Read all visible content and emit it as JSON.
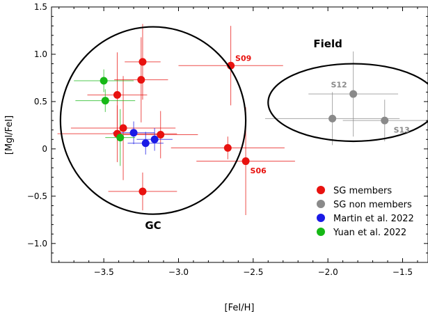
{
  "chart_data": {
    "type": "scatter",
    "xlabel": "[FeI/H]",
    "ylabel": "[MgI/FeI]",
    "xlim": [
      -3.85,
      -1.33
    ],
    "ylim": [
      -1.2,
      1.5
    ],
    "x_ticks": [
      -3.5,
      -3.0,
      -2.5,
      -2.0,
      -1.5
    ],
    "x_tick_labels": [
      "−3.5",
      "−3.0",
      "−2.5",
      "−2.0",
      "−1.5"
    ],
    "y_ticks": [
      -1.0,
      -0.5,
      0.0,
      0.5,
      1.0,
      1.5
    ],
    "y_tick_labels": [
      "−1.0",
      "−0.5",
      "0",
      "0.5",
      "1.0",
      "1.5"
    ],
    "grid": false,
    "legend_position": "lower-right",
    "series": [
      {
        "name": "SG members",
        "color": "#e8120f",
        "points": [
          {
            "x": -3.24,
            "y": 0.92,
            "xerr": 0.12,
            "yerr": 0.4
          },
          {
            "x": -3.25,
            "y": 0.73,
            "xerr": 0.18,
            "yerr": 0.45
          },
          {
            "x": -3.41,
            "y": 0.57,
            "xerr": 0.2,
            "yerr": 0.45
          },
          {
            "x": -3.37,
            "y": 0.22,
            "xerr": 0.35,
            "yerr": 0.55
          },
          {
            "x": -3.12,
            "y": 0.15,
            "xerr": 0.25,
            "yerr": 0.25
          },
          {
            "x": -3.41,
            "y": 0.16,
            "xerr": 0.4,
            "yerr": 0.3
          },
          {
            "x": -2.65,
            "y": 0.88,
            "xerr": 0.35,
            "yerr": 0.42
          },
          {
            "x": -2.67,
            "y": 0.01,
            "xerr": 0.38,
            "yerr": 0.12
          },
          {
            "x": -2.55,
            "y": -0.13,
            "xerr": 0.33,
            "yerr": 0.57
          },
          {
            "x": -3.24,
            "y": -0.45,
            "xerr": 0.23,
            "yerr": 0.2
          }
        ]
      },
      {
        "name": "SG non members",
        "color": "#8a8a8a",
        "points": [
          {
            "x": -1.83,
            "y": 0.58,
            "xerr": 0.3,
            "yerr": 0.45
          },
          {
            "x": -1.97,
            "y": 0.32,
            "xerr": 0.45,
            "yerr": 0.28
          },
          {
            "x": -1.62,
            "y": 0.3,
            "xerr": 0.28,
            "yerr": 0.22
          }
        ]
      },
      {
        "name": "Martin et al. 2022",
        "color": "#1a1ae6",
        "points": [
          {
            "x": -3.3,
            "y": 0.17,
            "xerr": 0.14,
            "yerr": 0.12
          },
          {
            "x": -3.22,
            "y": 0.06,
            "xerr": 0.12,
            "yerr": 0.12
          },
          {
            "x": -3.16,
            "y": 0.1,
            "xerr": 0.12,
            "yerr": 0.12
          }
        ]
      },
      {
        "name": "Yuan et al. 2022",
        "color": "#16b816",
        "points": [
          {
            "x": -3.5,
            "y": 0.72,
            "xerr": 0.2,
            "yerr": 0.12
          },
          {
            "x": -3.49,
            "y": 0.51,
            "xerr": 0.2,
            "yerr": 0.12
          },
          {
            "x": -3.39,
            "y": 0.12,
            "xerr": 0.1,
            "yerr": 0.3
          }
        ]
      }
    ],
    "point_labels": [
      {
        "text": "S09",
        "x": -2.62,
        "y": 0.96,
        "color": "#e8120f"
      },
      {
        "text": "S06",
        "x": -2.52,
        "y": -0.23,
        "color": "#e8120f"
      },
      {
        "text": "S12",
        "x": -1.98,
        "y": 0.68,
        "color": "#8a8a8a"
      },
      {
        "text": "S13",
        "x": -1.56,
        "y": 0.2,
        "color": "#8a8a8a"
      }
    ],
    "regions": [
      {
        "label": "GC",
        "cx": -3.17,
        "cy": 0.3,
        "rx": 0.62,
        "ry": 0.99,
        "label_x": -3.17,
        "label_y": -0.81
      },
      {
        "label": "Field",
        "cx": -1.83,
        "cy": 0.49,
        "rx": 0.57,
        "ry": 0.41,
        "label_x": -2.0,
        "label_y": 1.11
      }
    ]
  }
}
